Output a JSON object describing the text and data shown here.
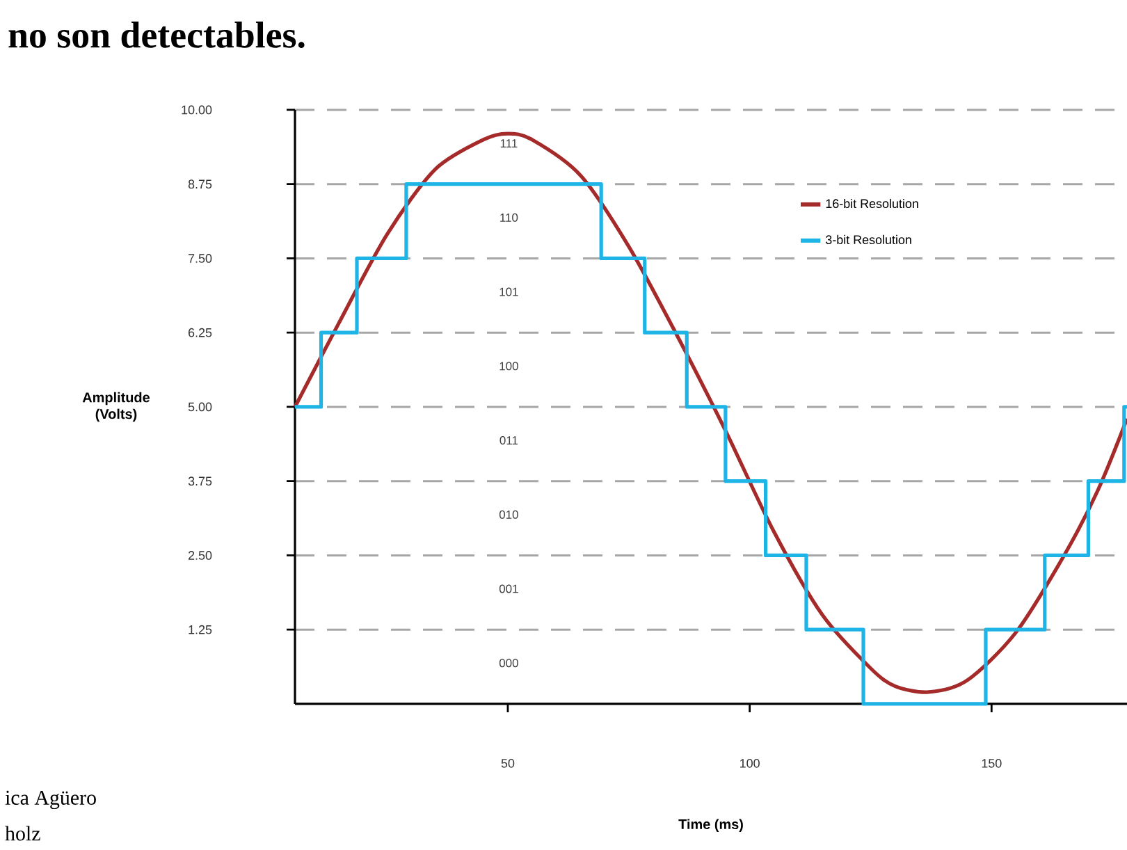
{
  "chart_data": {
    "type": "line",
    "title": "no son detectables.",
    "xlabel": "Time (ms)",
    "ylabel": "Amplitude (Volts)",
    "series": [
      {
        "name": "16-bit Resolution",
        "color": "#a52a2a",
        "x": [
          6,
          15,
          25,
          35,
          45,
          50,
          55,
          65,
          75,
          85,
          95,
          105,
          115,
          125,
          130,
          137,
          145,
          155,
          165,
          172,
          178
        ],
        "values": [
          5.0,
          6.4,
          7.9,
          9.0,
          9.5,
          9.6,
          9.5,
          8.9,
          7.7,
          6.2,
          4.6,
          2.9,
          1.5,
          0.6,
          0.3,
          0.2,
          0.4,
          1.2,
          2.5,
          3.6,
          4.8
        ]
      },
      {
        "name": "3-bit Resolution",
        "color": "#1eb4e6",
        "type": "step",
        "x": [
          6,
          11.4,
          18.8,
          29,
          69.3,
          78.3,
          87,
          95,
          103.3,
          111.7,
          123.5,
          148.8,
          161,
          170,
          177.4,
          178
        ],
        "values": [
          5,
          6.25,
          7.5,
          8.75,
          7.5,
          6.25,
          5,
          3.75,
          2.5,
          1.25,
          0,
          1.25,
          2.5,
          3.75,
          5,
          5
        ]
      }
    ],
    "xlim": [
      6,
      178
    ],
    "ylim": [
      0,
      10
    ],
    "xticks": [
      50,
      100,
      150
    ],
    "yticks": [
      {
        "value": 1.25,
        "label": "1.25"
      },
      {
        "value": 2.5,
        "label": "2.50"
      },
      {
        "value": 3.75,
        "label": "3.75"
      },
      {
        "value": 5,
        "label": "5.00"
      },
      {
        "value": 6.25,
        "label": "6.25"
      },
      {
        "value": 7.5,
        "label": "7.50"
      },
      {
        "value": 8.75,
        "label": "8.75"
      },
      {
        "value": 10,
        "label": "10.00"
      }
    ],
    "grid": "y",
    "legend": "top right",
    "annotations": [
      "111",
      "110",
      "101",
      "100",
      "011",
      "010",
      "001",
      "000",
      "ica Agüero",
      "holz"
    ]
  }
}
